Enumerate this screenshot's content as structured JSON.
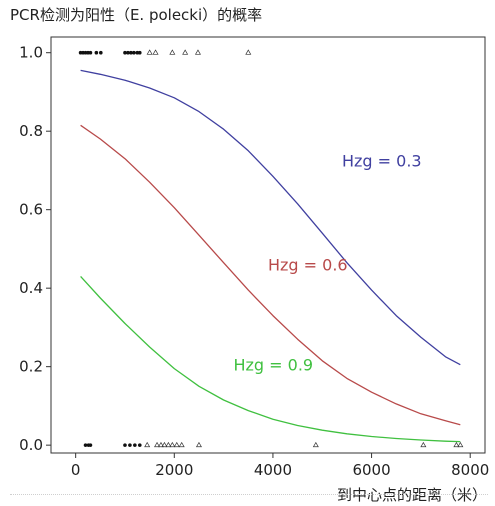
{
  "chart_data": {
    "type": "line",
    "title": "PCR检测为阳性（E. polecki）的概率",
    "xlabel": "到中心点的距离（米）",
    "ylabel": "",
    "xlim": [
      -500,
      8300
    ],
    "ylim": [
      -0.02,
      1.04
    ],
    "xticks": [
      "0",
      "2000",
      "4000",
      "6000",
      "8000"
    ],
    "yticks": [
      "0.0",
      "0.2",
      "0.4",
      "0.6",
      "0.8",
      "1.0"
    ],
    "grid": false,
    "series": [
      {
        "name": "Hzg = 0.3",
        "color": "#4040a0",
        "x": [
          100,
          500,
          1000,
          1500,
          2000,
          2500,
          3000,
          3500,
          4000,
          4500,
          5000,
          5500,
          6000,
          6500,
          7000,
          7500,
          7800
        ],
        "values": [
          0.955,
          0.945,
          0.93,
          0.91,
          0.885,
          0.85,
          0.805,
          0.75,
          0.685,
          0.615,
          0.54,
          0.465,
          0.395,
          0.33,
          0.275,
          0.225,
          0.205
        ]
      },
      {
        "name": "Hzg = 0.6",
        "color": "#b84a4a",
        "x": [
          100,
          500,
          1000,
          1500,
          2000,
          2500,
          3000,
          3500,
          4000,
          4500,
          5000,
          5500,
          6000,
          6500,
          7000,
          7500,
          7800
        ],
        "values": [
          0.815,
          0.78,
          0.73,
          0.67,
          0.605,
          0.535,
          0.465,
          0.395,
          0.33,
          0.27,
          0.215,
          0.17,
          0.135,
          0.105,
          0.08,
          0.062,
          0.052
        ]
      },
      {
        "name": "Hzg = 0.9",
        "color": "#40c040",
        "x": [
          100,
          500,
          1000,
          1500,
          2000,
          2500,
          3000,
          3500,
          4000,
          4500,
          5000,
          5500,
          6000,
          6500,
          7000,
          7500,
          7800
        ],
        "values": [
          0.43,
          0.375,
          0.31,
          0.25,
          0.195,
          0.15,
          0.115,
          0.088,
          0.066,
          0.05,
          0.038,
          0.029,
          0.022,
          0.017,
          0.013,
          0.01,
          0.009
        ]
      }
    ],
    "curve_label_positions": [
      {
        "series": 0,
        "x": 5400,
        "y": 0.71
      },
      {
        "series": 1,
        "x": 3900,
        "y": 0.445
      },
      {
        "series": 2,
        "x": 3200,
        "y": 0.19
      }
    ],
    "observations": {
      "positive_filled": [
        100,
        150,
        200,
        250,
        300,
        420,
        510,
        1000,
        1060,
        1120,
        1180,
        1250,
        1300
      ],
      "positive_hollow": [
        1500,
        1620,
        1960,
        2220,
        2480,
        3500
      ],
      "negative_filled": [
        200,
        260,
        300,
        1000,
        1100,
        1200,
        1300
      ],
      "negative_hollow": [
        1450,
        1650,
        1730,
        1800,
        1880,
        1960,
        2050,
        2150,
        2500,
        4870,
        7050,
        7720,
        7800
      ]
    }
  }
}
